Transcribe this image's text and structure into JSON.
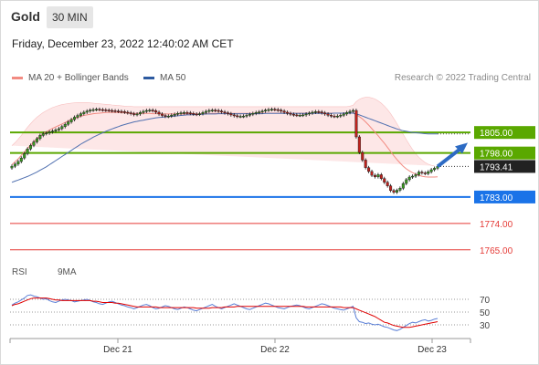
{
  "header": {
    "instrument": "Gold",
    "timeframe": "30 MIN",
    "datetime": "Friday, December 23, 2022 12:40:02 AM CET",
    "research": "Research © 2022 Trading Central"
  },
  "legend": {
    "ma20": {
      "label": "MA 20 + Bollinger Bands",
      "color": "#f28b82"
    },
    "ma50": {
      "label": "MA 50",
      "color": "#2d5aa0"
    }
  },
  "rsi_legend": {
    "rsi": {
      "label": "RSI",
      "color": "#5b7fd6"
    },
    "ma9": {
      "label": "9MA",
      "color": "#e00000"
    }
  },
  "chart_data": {
    "type": "candlestick",
    "instrument": "Gold",
    "timeframe": "30 MIN",
    "x_tick_labels": [
      "Dec 21",
      "Dec 22",
      "Dec 23"
    ],
    "ylim": [
      1761.5,
      1817.5
    ],
    "current_price": 1793.41,
    "levels": [
      {
        "value": 1805.0,
        "label": "1805.00",
        "kind": "resistance",
        "color": "#5aa800"
      },
      {
        "value": 1798.0,
        "label": "1798.00",
        "kind": "pivot",
        "color": "#5aa800"
      },
      {
        "value": 1783.0,
        "label": "1783.00",
        "kind": "support",
        "color": "#1a73e8"
      },
      {
        "value": 1774.0,
        "label": "1774.00",
        "kind": "support",
        "color": "#e53935"
      },
      {
        "value": 1765.0,
        "label": "1765.00",
        "kind": "support",
        "color": "#e53935"
      }
    ],
    "close": [
      1793.5,
      1794.2,
      1795.1,
      1796.3,
      1797.8,
      1799.4,
      1800.6,
      1801.8,
      1802.9,
      1804.0,
      1804.6,
      1804.8,
      1805.2,
      1805.5,
      1805.9,
      1806.3,
      1807.0,
      1807.8,
      1808.6,
      1809.4,
      1810.2,
      1810.8,
      1811.4,
      1811.9,
      1812.3,
      1812.6,
      1812.8,
      1812.9,
      1812.8,
      1812.7,
      1812.6,
      1812.5,
      1812.4,
      1812.3,
      1812.2,
      1812.1,
      1811.9,
      1811.7,
      1811.4,
      1811.1,
      1811.3,
      1811.8,
      1812.2,
      1812.5,
      1812.6,
      1812.4,
      1811.9,
      1811.3,
      1810.8,
      1810.5,
      1810.6,
      1810.9,
      1811.2,
      1811.5,
      1811.7,
      1811.8,
      1811.7,
      1811.5,
      1811.3,
      1811.2,
      1811.4,
      1811.8,
      1812.2,
      1812.5,
      1812.6,
      1812.5,
      1812.3,
      1812.0,
      1811.7,
      1811.4,
      1811.0,
      1810.7,
      1810.5,
      1810.5,
      1810.6,
      1810.9,
      1811.2,
      1811.5,
      1811.8,
      1812.0,
      1812.3,
      1812.6,
      1812.8,
      1812.9,
      1812.8,
      1812.6,
      1812.3,
      1811.9,
      1811.5,
      1811.2,
      1811.0,
      1810.9,
      1810.9,
      1811.0,
      1811.3,
      1811.6,
      1811.9,
      1812.1,
      1812.0,
      1811.7,
      1811.3,
      1810.9,
      1810.6,
      1810.5,
      1810.6,
      1810.9,
      1811.3,
      1811.8,
      1812.2,
      1812.5,
      1803.5,
      1798.2,
      1795.6,
      1793.0,
      1791.7,
      1790.4,
      1789.9,
      1790.6,
      1789.3,
      1788.0,
      1786.8,
      1785.2,
      1784.6,
      1785.3,
      1786.0,
      1787.6,
      1788.9,
      1789.8,
      1790.1,
      1790.6,
      1791.5,
      1791.2,
      1791.0,
      1791.6,
      1792.3,
      1792.8,
      1793.41
    ],
    "ma20": [
      1794.0,
      1795.0,
      1796.0,
      1797.2,
      1798.4,
      1799.6,
      1800.7,
      1801.8,
      1802.8,
      1803.7,
      1804.5,
      1805.2,
      1805.8,
      1806.4,
      1806.9,
      1807.4,
      1807.9,
      1808.4,
      1808.9,
      1809.4,
      1809.8,
      1810.2,
      1810.5,
      1810.8,
      1811.0,
      1811.2,
      1811.4,
      1811.5,
      1811.6,
      1811.7,
      1811.8,
      1811.8,
      1811.8,
      1811.8,
      1811.8,
      1811.7,
      1811.7,
      1811.6,
      1811.6,
      1811.5,
      1811.5,
      1811.5,
      1811.5,
      1811.5,
      1811.5,
      1811.4,
      1811.4,
      1811.4,
      1811.3,
      1811.3,
      1811.3,
      1811.3,
      1811.3,
      1811.3,
      1811.3,
      1811.3,
      1811.3,
      1811.3,
      1811.3,
      1811.3,
      1811.3,
      1811.4,
      1811.4,
      1811.4,
      1811.5,
      1811.5,
      1811.5,
      1811.5,
      1811.5,
      1811.5,
      1811.5,
      1811.5,
      1811.5,
      1811.5,
      1811.5,
      1811.5,
      1811.5,
      1811.5,
      1811.5,
      1811.6,
      1811.6,
      1811.6,
      1811.6,
      1811.6,
      1811.6,
      1811.6,
      1811.6,
      1811.6,
      1811.6,
      1811.6,
      1811.6,
      1811.6,
      1811.6,
      1811.6,
      1811.6,
      1811.6,
      1811.6,
      1811.6,
      1811.6,
      1811.6,
      1811.6,
      1811.6,
      1811.6,
      1811.6,
      1811.6,
      1811.6,
      1811.6,
      1811.6,
      1811.6,
      1811.6,
      1811.1,
      1810.4,
      1809.6,
      1808.6,
      1807.5,
      1806.3,
      1805.1,
      1803.9,
      1802.6,
      1801.3,
      1799.9,
      1798.5,
      1797.1,
      1795.8,
      1794.6,
      1793.5,
      1792.6,
      1791.9,
      1791.3,
      1790.8,
      1790.4,
      1790.1,
      1789.9,
      1789.8,
      1789.8,
      1789.8,
      1789.9
    ],
    "bb_upper": [
      1800.5,
      1801.5,
      1802.7,
      1804.0,
      1805.4,
      1806.8,
      1808.0,
      1809.2,
      1810.2,
      1811.0,
      1811.8,
      1812.4,
      1813.0,
      1813.5,
      1813.9,
      1814.2,
      1814.5,
      1814.7,
      1814.9,
      1815.0,
      1815.1,
      1815.2,
      1815.2,
      1815.2,
      1815.2,
      1815.1,
      1815.0,
      1814.9,
      1814.8,
      1814.7,
      1814.6,
      1814.5,
      1814.4,
      1814.3,
      1814.2,
      1814.1,
      1814.0,
      1813.9,
      1813.9,
      1813.8,
      1813.8,
      1813.8,
      1813.8,
      1813.8,
      1813.8,
      1813.8,
      1813.8,
      1813.8,
      1813.8,
      1813.8,
      1813.8,
      1813.8,
      1813.8,
      1813.8,
      1813.8,
      1813.8,
      1813.8,
      1813.8,
      1813.8,
      1813.8,
      1813.8,
      1813.8,
      1813.8,
      1813.8,
      1813.8,
      1813.8,
      1813.8,
      1813.8,
      1813.8,
      1813.8,
      1813.8,
      1813.8,
      1813.8,
      1813.8,
      1813.8,
      1813.8,
      1813.8,
      1813.8,
      1813.8,
      1813.8,
      1813.8,
      1813.8,
      1813.8,
      1813.8,
      1813.8,
      1813.8,
      1813.8,
      1813.8,
      1813.8,
      1813.8,
      1813.8,
      1813.8,
      1813.8,
      1813.8,
      1813.8,
      1813.8,
      1813.8,
      1813.8,
      1813.8,
      1813.8,
      1813.8,
      1813.8,
      1813.8,
      1813.8,
      1813.8,
      1813.8,
      1813.8,
      1813.8,
      1814.0,
      1814.3,
      1815.5,
      1816.3,
      1816.8,
      1817.0,
      1817.0,
      1816.8,
      1816.4,
      1815.8,
      1815.0,
      1814.0,
      1812.8,
      1811.4,
      1809.8,
      1808.0,
      1806.2,
      1804.4,
      1802.6,
      1800.8,
      1799.2,
      1797.8,
      1796.6,
      1795.6,
      1794.8,
      1794.2,
      1793.8,
      1793.6
    ],
    "bb_lower": [
      1787.5,
      1788.5,
      1789.3,
      1790.4,
      1791.4,
      1792.4,
      1793.4,
      1794.4,
      1795.4,
      1796.4,
      1797.2,
      1798.0,
      1798.6,
      1799.3,
      1799.9,
      1800.6,
      1801.3,
      1802.1,
      1802.9,
      1803.8,
      1804.5,
      1805.2,
      1805.8,
      1806.4,
      1806.8,
      1807.3,
      1807.8,
      1808.1,
      1808.4,
      1808.7,
      1809.0,
      1809.1,
      1809.2,
      1809.3,
      1809.4,
      1809.3,
      1809.4,
      1809.3,
      1809.3,
      1809.2,
      1809.2,
      1809.2,
      1809.2,
      1809.2,
      1809.2,
      1809.0,
      1809.0,
      1809.0,
      1808.8,
      1808.8,
      1808.8,
      1808.8,
      1808.8,
      1808.8,
      1808.8,
      1808.8,
      1808.8,
      1808.8,
      1808.8,
      1808.8,
      1808.8,
      1809.0,
      1809.0,
      1809.0,
      1809.2,
      1809.2,
      1809.2,
      1809.2,
      1809.2,
      1809.2,
      1809.2,
      1809.2,
      1809.2,
      1809.2,
      1809.2,
      1809.2,
      1809.2,
      1809.2,
      1809.2,
      1809.4,
      1809.4,
      1809.4,
      1809.4,
      1809.4,
      1809.4,
      1809.4,
      1809.4,
      1809.4,
      1809.4,
      1809.4,
      1809.4,
      1809.4,
      1809.4,
      1809.4,
      1809.4,
      1809.4,
      1809.4,
      1809.4,
      1809.4,
      1809.4,
      1809.4,
      1809.4,
      1809.4,
      1809.4,
      1809.4,
      1809.4,
      1809.4,
      1809.4,
      1808.2,
      1806.5,
      1803.7,
      1800.5,
      1796.9,
      1793.0,
      1789.6,
      1786.6,
      1784.2,
      1782.2,
      1780.8,
      1779.8,
      1779.0,
      1778.6,
      1778.5,
      1778.6,
      1779.0,
      1779.6,
      1780.4,
      1781.0,
      1781.6,
      1782.2,
      1782.8,
      1783.4,
      1784.0,
      1784.6,
      1785.2,
      1785.7
    ],
    "ma50": [
      1788.0,
      1788.4,
      1788.8,
      1789.2,
      1789.6,
      1790.0,
      1790.5,
      1791.0,
      1791.5,
      1792.1,
      1792.7,
      1793.3,
      1794.0,
      1794.7,
      1795.4,
      1796.1,
      1796.8,
      1797.5,
      1798.2,
      1798.9,
      1799.6,
      1800.3,
      1801.0,
      1801.6,
      1802.2,
      1802.8,
      1803.4,
      1803.9,
      1804.4,
      1804.9,
      1805.4,
      1805.8,
      1806.2,
      1806.6,
      1807.0,
      1807.4,
      1807.7,
      1808.0,
      1808.3,
      1808.6,
      1808.8,
      1809.0,
      1809.2,
      1809.4,
      1809.6,
      1809.8,
      1810.0,
      1810.1,
      1810.2,
      1810.3,
      1810.4,
      1810.5,
      1810.6,
      1810.7,
      1810.8,
      1810.9,
      1811.0,
      1811.0,
      1811.1,
      1811.1,
      1811.2,
      1811.2,
      1811.3,
      1811.3,
      1811.3,
      1811.3,
      1811.4,
      1811.4,
      1811.4,
      1811.4,
      1811.4,
      1811.4,
      1811.4,
      1811.4,
      1811.4,
      1811.4,
      1811.4,
      1811.4,
      1811.4,
      1811.4,
      1811.4,
      1811.5,
      1811.5,
      1811.5,
      1811.5,
      1811.5,
      1811.5,
      1811.5,
      1811.5,
      1811.5,
      1811.5,
      1811.5,
      1811.5,
      1811.5,
      1811.5,
      1811.5,
      1811.5,
      1811.5,
      1811.5,
      1811.5,
      1811.5,
      1811.5,
      1811.5,
      1811.6,
      1811.6,
      1811.6,
      1811.6,
      1811.6,
      1811.6,
      1811.6,
      1811.3,
      1811.0,
      1810.6,
      1810.2,
      1809.8,
      1809.4,
      1809.0,
      1808.6,
      1808.2,
      1807.8,
      1807.4,
      1807.0,
      1806.6,
      1806.2,
      1805.9,
      1805.6,
      1805.4,
      1805.2,
      1805.0,
      1804.9,
      1804.8,
      1804.7,
      1804.6,
      1804.5,
      1804.5,
      1804.5,
      1804.5
    ],
    "projection": {
      "from": 1793.41,
      "to": 1801.5
    },
    "rsi": {
      "ylim": [
        10,
        90
      ],
      "tick_levels": [
        70,
        50,
        30
      ],
      "rsi": [
        61,
        64,
        66,
        69,
        72,
        76,
        77,
        75,
        74,
        72,
        70,
        71,
        68,
        66,
        65,
        67,
        69,
        70,
        69,
        68,
        66,
        67,
        68,
        69,
        70,
        68,
        66,
        65,
        63,
        62,
        64,
        66,
        67,
        65,
        63,
        61,
        60,
        58,
        57,
        55,
        57,
        59,
        61,
        62,
        60,
        57,
        55,
        56,
        58,
        60,
        59,
        57,
        55,
        54,
        56,
        58,
        57,
        55,
        53,
        52,
        54,
        56,
        58,
        60,
        62,
        59,
        57,
        55,
        57,
        59,
        61,
        63,
        61,
        59,
        57,
        55,
        54,
        56,
        58,
        60,
        62,
        64,
        63,
        61,
        59,
        57,
        56,
        55,
        57,
        59,
        60,
        61,
        60,
        58,
        56,
        55,
        57,
        59,
        61,
        63,
        62,
        60,
        58,
        56,
        55,
        54,
        53,
        55,
        57,
        59,
        41,
        35,
        34,
        32,
        33,
        31,
        30,
        31,
        29,
        27,
        26,
        24,
        22,
        21,
        23,
        26,
        29,
        32,
        34,
        33,
        35,
        37,
        38,
        36,
        37,
        39,
        40
      ],
      "ma9": [
        60,
        62,
        63,
        65,
        67,
        69,
        71,
        72,
        72,
        72,
        72,
        72,
        71,
        70,
        69,
        69,
        68,
        68,
        68,
        68,
        68,
        68,
        68,
        68,
        68,
        68,
        67,
        67,
        66,
        65,
        65,
        65,
        65,
        64,
        64,
        63,
        62,
        61,
        60,
        59,
        58,
        58,
        58,
        58,
        58,
        58,
        58,
        57,
        57,
        57,
        57,
        57,
        57,
        57,
        57,
        57,
        57,
        57,
        57,
        56,
        56,
        56,
        56,
        56,
        57,
        57,
        57,
        57,
        58,
        58,
        58,
        58,
        59,
        59,
        59,
        59,
        59,
        59,
        59,
        59,
        59,
        59,
        59,
        59,
        59,
        59,
        59,
        59,
        59,
        59,
        59,
        59,
        59,
        59,
        58,
        58,
        58,
        58,
        58,
        58,
        58,
        58,
        58,
        58,
        58,
        58,
        57,
        57,
        57,
        57,
        55,
        53,
        51,
        49,
        47,
        45,
        43,
        40,
        37,
        34,
        33,
        31,
        29,
        28,
        27,
        26,
        26,
        26,
        27,
        28,
        29,
        30,
        31,
        32,
        33,
        34,
        35
      ]
    }
  }
}
